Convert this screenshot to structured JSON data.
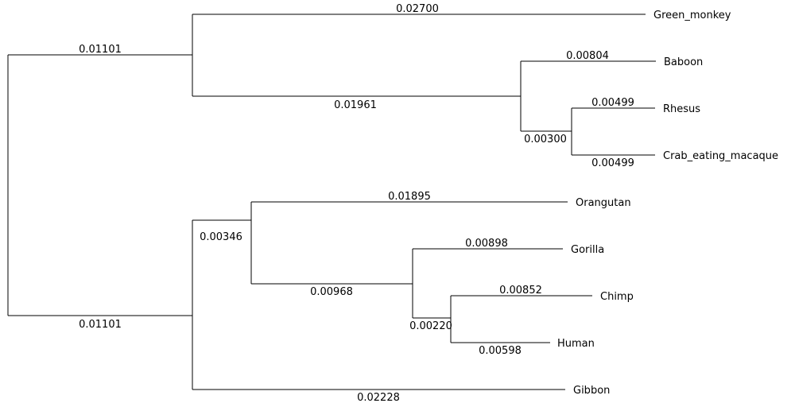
{
  "tree": {
    "branches": [
      {
        "id": "root-top",
        "length": "0.01101"
      },
      {
        "id": "root-bottom",
        "length": "0.01101"
      },
      {
        "id": "green-monkey",
        "length": "0.02700"
      },
      {
        "id": "old-world-internal",
        "length": "0.01961"
      },
      {
        "id": "baboon",
        "length": "0.00804"
      },
      {
        "id": "macaque-internal",
        "length": "0.00300"
      },
      {
        "id": "rhesus",
        "length": "0.00499"
      },
      {
        "id": "crab-eating-macaque",
        "length": "0.00499"
      },
      {
        "id": "great-ape-internal",
        "length": "0.00346"
      },
      {
        "id": "orangutan",
        "length": "0.01895"
      },
      {
        "id": "african-ape-internal",
        "length": "0.00968"
      },
      {
        "id": "gorilla",
        "length": "0.00898"
      },
      {
        "id": "chimp-human-internal",
        "length": "0.00220"
      },
      {
        "id": "chimp",
        "length": "0.00852"
      },
      {
        "id": "human",
        "length": "0.00598"
      },
      {
        "id": "gibbon",
        "length": "0.02228"
      }
    ],
    "taxa": [
      {
        "id": "green-monkey",
        "name": "Green_monkey"
      },
      {
        "id": "baboon",
        "name": "Baboon"
      },
      {
        "id": "rhesus",
        "name": "Rhesus"
      },
      {
        "id": "crab-eating-macaque",
        "name": "Crab_eating_macaque"
      },
      {
        "id": "orangutan",
        "name": "Orangutan"
      },
      {
        "id": "gorilla",
        "name": "Gorilla"
      },
      {
        "id": "chimp",
        "name": "Chimp"
      },
      {
        "id": "human",
        "name": "Human"
      },
      {
        "id": "gibbon",
        "name": "Gibbon"
      }
    ]
  }
}
